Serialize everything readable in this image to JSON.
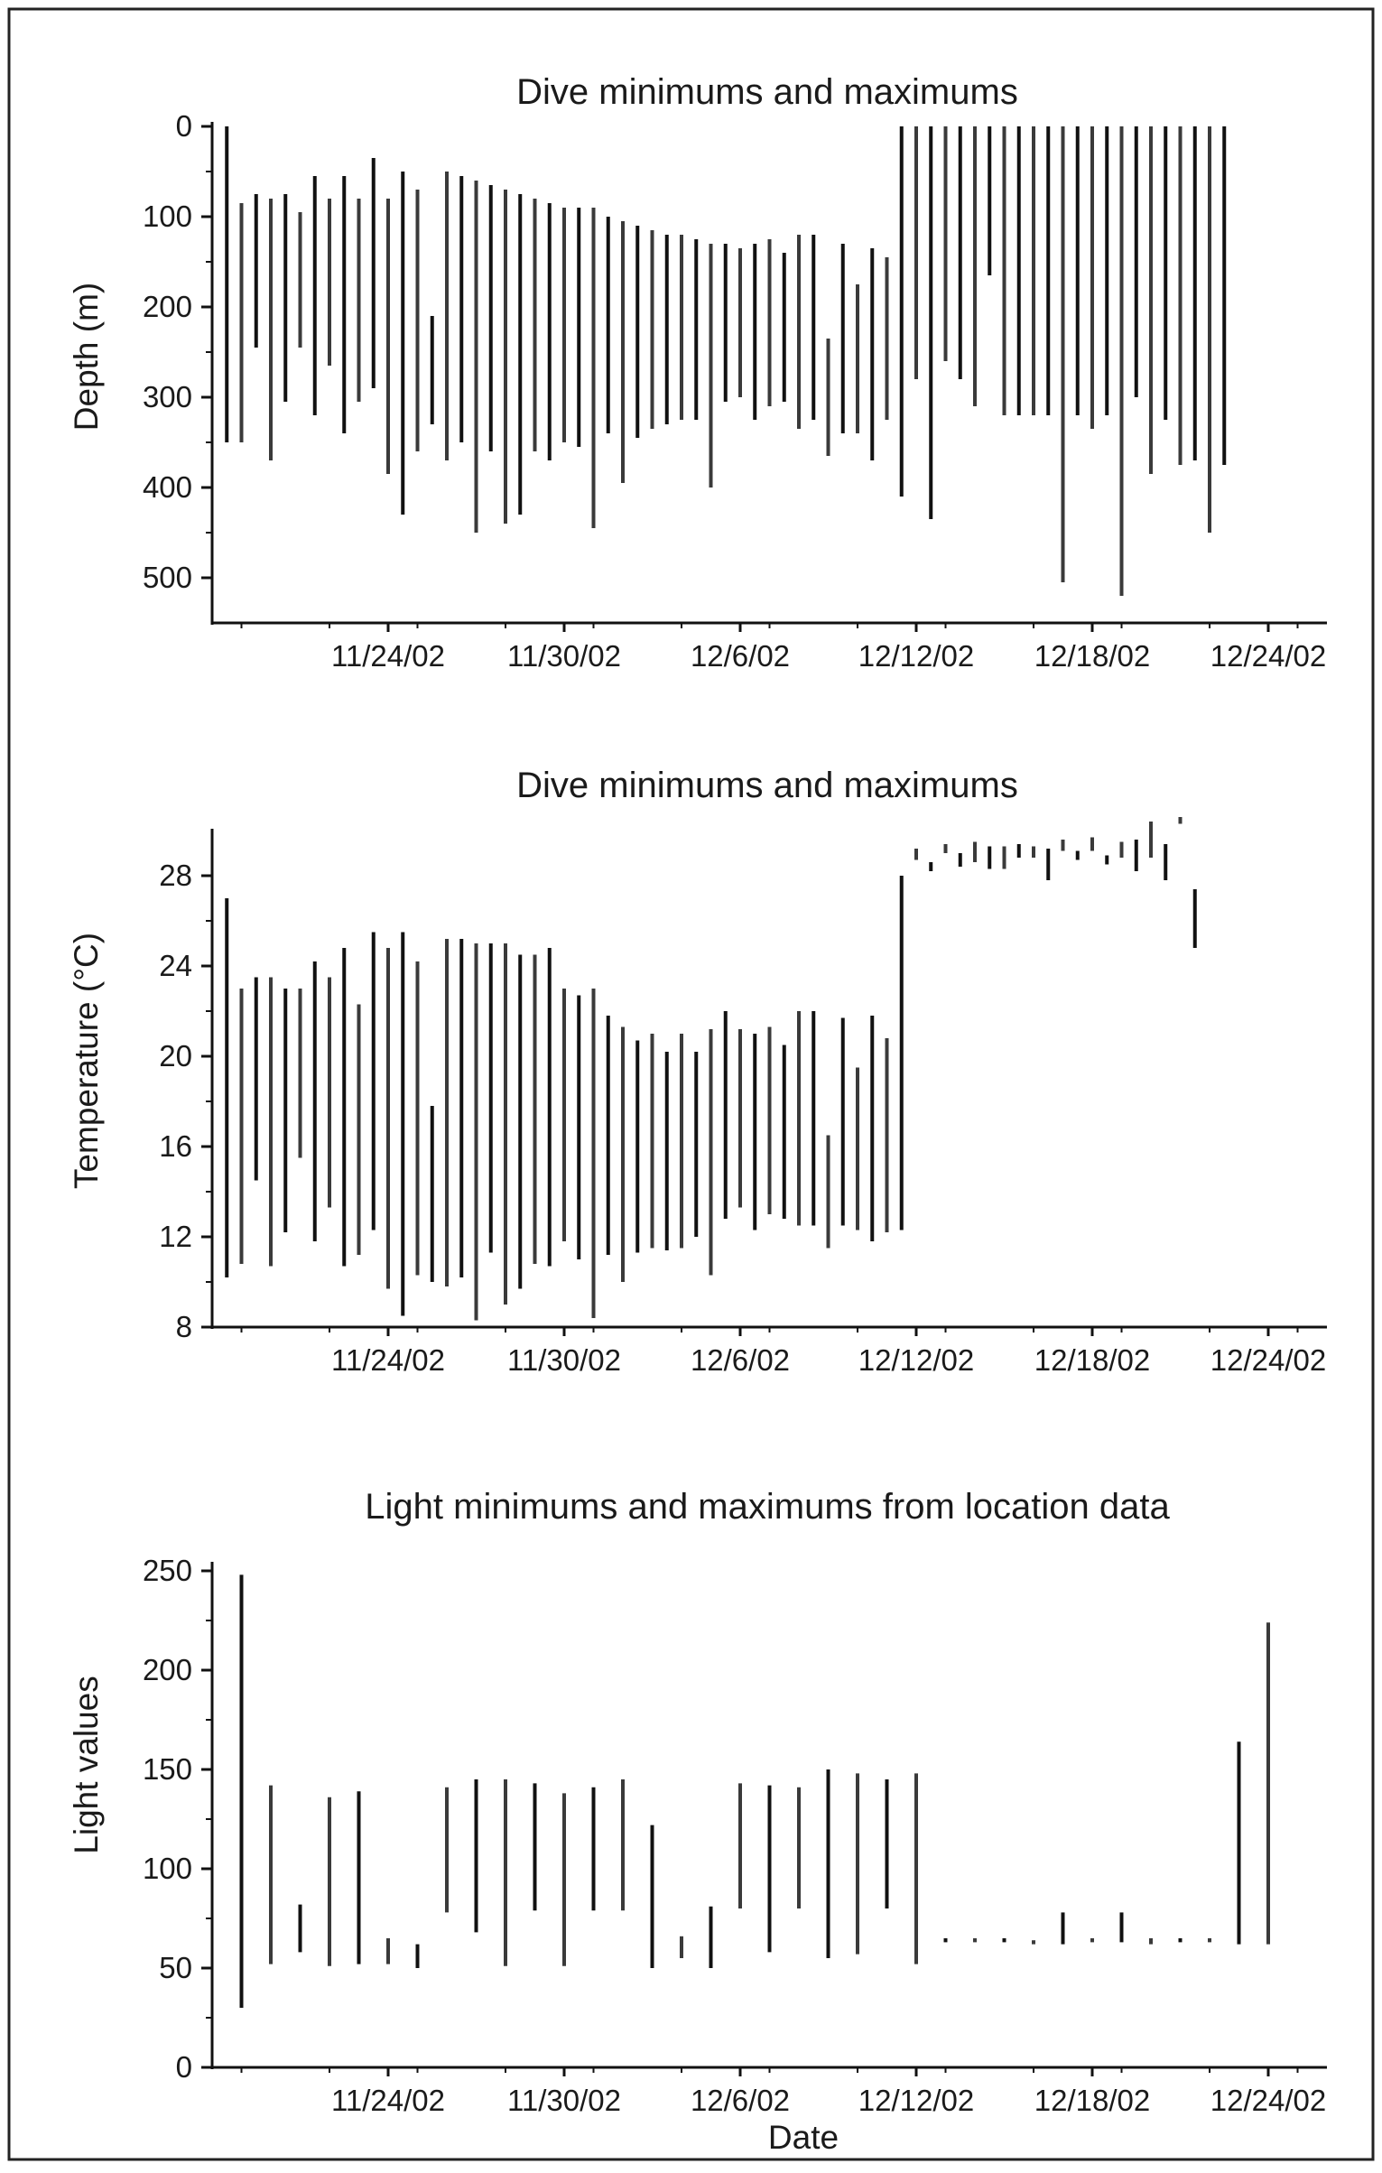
{
  "figure": {
    "xlabel": "Date"
  },
  "chart_data": [
    {
      "type": "range-bar",
      "title": "Dive minimums and maximums",
      "xlabel": "",
      "ylabel": "Depth (m)",
      "x_type": "date",
      "xlim": [
        "2002-11-18",
        "2002-12-26"
      ],
      "ylim": [
        0,
        550
      ],
      "y_inverted": true,
      "y_ticks": [
        0,
        100,
        200,
        300,
        400,
        500
      ],
      "x_ticks": [
        "11/24/02",
        "11/30/02",
        "12/6/02",
        "12/12/02",
        "12/18/02",
        "12/24/02"
      ],
      "x_tick_dates": [
        "2002-11-24",
        "2002-11-30",
        "2002-12-06",
        "2002-12-12",
        "2002-12-18",
        "2002-12-24"
      ],
      "grid": false,
      "series": [
        {
          "points": [
            [
              "2002-11-18T12:00",
              0,
              350
            ],
            [
              "2002-11-19T00:00",
              85,
              350
            ],
            [
              "2002-11-19T12:00",
              75,
              245
            ],
            [
              "2002-11-20T00:00",
              80,
              370
            ],
            [
              "2002-11-20T12:00",
              75,
              305
            ],
            [
              "2002-11-21T00:00",
              95,
              245
            ],
            [
              "2002-11-21T12:00",
              55,
              320
            ],
            [
              "2002-11-22T00:00",
              80,
              265
            ],
            [
              "2002-11-22T12:00",
              55,
              340
            ],
            [
              "2002-11-23T00:00",
              80,
              305
            ],
            [
              "2002-11-23T12:00",
              35,
              290
            ],
            [
              "2002-11-24T00:00",
              80,
              385
            ],
            [
              "2002-11-24T12:00",
              50,
              430
            ],
            [
              "2002-11-25T00:00",
              70,
              360
            ],
            [
              "2002-11-25T12:00",
              210,
              330
            ],
            [
              "2002-11-26T00:00",
              50,
              370
            ],
            [
              "2002-11-26T12:00",
              55,
              350
            ],
            [
              "2002-11-27T00:00",
              60,
              450
            ],
            [
              "2002-11-27T12:00",
              65,
              360
            ],
            [
              "2002-11-28T00:00",
              70,
              440
            ],
            [
              "2002-11-28T12:00",
              75,
              430
            ],
            [
              "2002-11-29T00:00",
              80,
              360
            ],
            [
              "2002-11-29T12:00",
              85,
              370
            ],
            [
              "2002-11-30T00:00",
              90,
              350
            ],
            [
              "2002-11-30T12:00",
              90,
              355
            ],
            [
              "2002-12-01T00:00",
              90,
              445
            ],
            [
              "2002-12-01T12:00",
              100,
              340
            ],
            [
              "2002-12-02T00:00",
              105,
              395
            ],
            [
              "2002-12-02T12:00",
              110,
              345
            ],
            [
              "2002-12-03T00:00",
              115,
              335
            ],
            [
              "2002-12-03T12:00",
              120,
              330
            ],
            [
              "2002-12-04T00:00",
              120,
              325
            ],
            [
              "2002-12-04T12:00",
              125,
              325
            ],
            [
              "2002-12-05T00:00",
              130,
              400
            ],
            [
              "2002-12-05T12:00",
              130,
              305
            ],
            [
              "2002-12-06T00:00",
              135,
              300
            ],
            [
              "2002-12-06T12:00",
              130,
              325
            ],
            [
              "2002-12-07T00:00",
              125,
              310
            ],
            [
              "2002-12-07T12:00",
              140,
              305
            ],
            [
              "2002-12-08T00:00",
              120,
              335
            ],
            [
              "2002-12-08T12:00",
              120,
              325
            ],
            [
              "2002-12-09T00:00",
              235,
              365
            ],
            [
              "2002-12-09T12:00",
              130,
              340
            ],
            [
              "2002-12-10T00:00",
              175,
              340
            ],
            [
              "2002-12-10T12:00",
              135,
              370
            ],
            [
              "2002-12-11T00:00",
              145,
              325
            ],
            [
              "2002-12-11T12:00",
              0,
              410
            ],
            [
              "2002-12-12T00:00",
              0,
              280
            ],
            [
              "2002-12-12T12:00",
              0,
              435
            ],
            [
              "2002-12-13T00:00",
              0,
              260
            ],
            [
              "2002-12-13T12:00",
              0,
              280
            ],
            [
              "2002-12-14T00:00",
              0,
              310
            ],
            [
              "2002-12-14T12:00",
              0,
              165
            ],
            [
              "2002-12-15T00:00",
              0,
              320
            ],
            [
              "2002-12-15T12:00",
              0,
              320
            ],
            [
              "2002-12-16T00:00",
              0,
              320
            ],
            [
              "2002-12-16T12:00",
              0,
              320
            ],
            [
              "2002-12-17T00:00",
              0,
              505
            ],
            [
              "2002-12-17T12:00",
              0,
              320
            ],
            [
              "2002-12-18T00:00",
              0,
              335
            ],
            [
              "2002-12-18T12:00",
              0,
              320
            ],
            [
              "2002-12-19T00:00",
              0,
              520
            ],
            [
              "2002-12-19T12:00",
              0,
              300
            ],
            [
              "2002-12-20T00:00",
              0,
              385
            ],
            [
              "2002-12-20T12:00",
              0,
              325
            ],
            [
              "2002-12-21T00:00",
              0,
              375
            ],
            [
              "2002-12-21T12:00",
              0,
              370
            ],
            [
              "2002-12-22T00:00",
              0,
              450
            ],
            [
              "2002-12-22T12:00",
              0,
              375
            ]
          ]
        }
      ]
    },
    {
      "type": "range-bar",
      "title": "Dive minimums and maximums",
      "xlabel": "",
      "ylabel": "Temperature (°C)",
      "x_type": "date",
      "xlim": [
        "2002-11-18",
        "2002-12-26"
      ],
      "ylim": [
        8,
        30
      ],
      "y_ticks": [
        8,
        12,
        16,
        20,
        24,
        28
      ],
      "x_ticks": [
        "11/24/02",
        "11/30/02",
        "12/6/02",
        "12/12/02",
        "12/18/02",
        "12/24/02"
      ],
      "x_tick_dates": [
        "2002-11-24",
        "2002-11-30",
        "2002-12-06",
        "2002-12-12",
        "2002-12-18",
        "2002-12-24"
      ],
      "grid": false,
      "series": [
        {
          "points": [
            [
              "2002-11-18T12:00",
              10.2,
              27.0
            ],
            [
              "2002-11-19T00:00",
              10.8,
              23.0
            ],
            [
              "2002-11-19T12:00",
              14.5,
              23.5
            ],
            [
              "2002-11-20T00:00",
              10.7,
              23.5
            ],
            [
              "2002-11-20T12:00",
              12.2,
              23.0
            ],
            [
              "2002-11-21T00:00",
              15.5,
              23.0
            ],
            [
              "2002-11-21T12:00",
              11.8,
              24.2
            ],
            [
              "2002-11-22T00:00",
              13.3,
              23.5
            ],
            [
              "2002-11-22T12:00",
              10.7,
              24.8
            ],
            [
              "2002-11-23T00:00",
              11.2,
              22.3
            ],
            [
              "2002-11-23T12:00",
              12.3,
              25.5
            ],
            [
              "2002-11-24T00:00",
              9.7,
              24.8
            ],
            [
              "2002-11-24T12:00",
              8.5,
              25.5
            ],
            [
              "2002-11-25T00:00",
              10.3,
              24.2
            ],
            [
              "2002-11-25T12:00",
              10.0,
              17.8
            ],
            [
              "2002-11-26T00:00",
              9.8,
              25.2
            ],
            [
              "2002-11-26T12:00",
              10.2,
              25.2
            ],
            [
              "2002-11-27T00:00",
              8.3,
              25.0
            ],
            [
              "2002-11-27T12:00",
              11.3,
              25.0
            ],
            [
              "2002-11-28T00:00",
              9.0,
              25.0
            ],
            [
              "2002-11-28T12:00",
              9.7,
              24.5
            ],
            [
              "2002-11-29T00:00",
              10.8,
              24.5
            ],
            [
              "2002-11-29T12:00",
              10.7,
              24.8
            ],
            [
              "2002-11-30T00:00",
              11.8,
              23.0
            ],
            [
              "2002-11-30T12:00",
              11.0,
              22.7
            ],
            [
              "2002-12-01T00:00",
              8.4,
              23.0
            ],
            [
              "2002-12-01T12:00",
              11.2,
              21.8
            ],
            [
              "2002-12-02T00:00",
              10.0,
              21.3
            ],
            [
              "2002-12-02T12:00",
              11.3,
              20.7
            ],
            [
              "2002-12-03T00:00",
              11.5,
              21.0
            ],
            [
              "2002-12-03T12:00",
              11.4,
              20.2
            ],
            [
              "2002-12-04T00:00",
              11.5,
              21.0
            ],
            [
              "2002-12-04T12:00",
              12.0,
              20.2
            ],
            [
              "2002-12-05T00:00",
              10.3,
              21.2
            ],
            [
              "2002-12-05T12:00",
              12.8,
              22.0
            ],
            [
              "2002-12-06T00:00",
              13.3,
              21.2
            ],
            [
              "2002-12-06T12:00",
              12.3,
              21.0
            ],
            [
              "2002-12-07T00:00",
              13.0,
              21.3
            ],
            [
              "2002-12-07T12:00",
              12.8,
              20.5
            ],
            [
              "2002-12-08T00:00",
              12.5,
              22.0
            ],
            [
              "2002-12-08T12:00",
              12.5,
              22.0
            ],
            [
              "2002-12-09T00:00",
              11.5,
              16.5
            ],
            [
              "2002-12-09T12:00",
              12.5,
              21.7
            ],
            [
              "2002-12-10T00:00",
              12.3,
              19.5
            ],
            [
              "2002-12-10T12:00",
              11.8,
              21.8
            ],
            [
              "2002-12-11T00:00",
              12.2,
              20.8
            ],
            [
              "2002-12-11T12:00",
              12.3,
              28.0
            ],
            [
              "2002-12-12T00:00",
              28.7,
              29.2
            ],
            [
              "2002-12-12T12:00",
              28.2,
              28.6
            ],
            [
              "2002-12-13T00:00",
              29.0,
              29.4
            ],
            [
              "2002-12-13T12:00",
              28.4,
              29.0
            ],
            [
              "2002-12-14T00:00",
              28.6,
              29.5
            ],
            [
              "2002-12-14T12:00",
              28.3,
              29.3
            ],
            [
              "2002-12-15T00:00",
              28.3,
              29.3
            ],
            [
              "2002-12-15T12:00",
              28.8,
              29.4
            ],
            [
              "2002-12-16T00:00",
              28.8,
              29.3
            ],
            [
              "2002-12-16T12:00",
              27.8,
              29.2
            ],
            [
              "2002-12-17T00:00",
              29.1,
              29.6
            ],
            [
              "2002-12-17T12:00",
              28.7,
              29.1
            ],
            [
              "2002-12-18T00:00",
              29.1,
              29.7
            ],
            [
              "2002-12-18T12:00",
              28.5,
              28.9
            ],
            [
              "2002-12-19T00:00",
              28.8,
              29.5
            ],
            [
              "2002-12-19T12:00",
              28.2,
              29.6
            ],
            [
              "2002-12-20T00:00",
              28.8,
              30.4
            ],
            [
              "2002-12-20T12:00",
              27.8,
              29.4
            ],
            [
              "2002-12-21T00:00",
              30.3,
              30.6
            ],
            [
              "2002-12-21T12:00",
              24.8,
              27.4
            ]
          ]
        }
      ]
    },
    {
      "type": "range-bar",
      "title": "Light minimums and maximums from location data",
      "xlabel": "Date",
      "ylabel": "Light values",
      "x_type": "date",
      "xlim": [
        "2002-11-18",
        "2002-12-26"
      ],
      "ylim": [
        0,
        250
      ],
      "y_ticks": [
        0,
        50,
        100,
        150,
        200,
        250
      ],
      "x_ticks": [
        "11/24/02",
        "11/30/02",
        "12/6/02",
        "12/12/02",
        "12/18/02",
        "12/24/02"
      ],
      "x_tick_dates": [
        "2002-11-24",
        "2002-11-30",
        "2002-12-06",
        "2002-12-12",
        "2002-12-18",
        "2002-12-24"
      ],
      "grid": false,
      "series": [
        {
          "points": [
            [
              "2002-11-19T00:00",
              30,
              248
            ],
            [
              "2002-11-20T00:00",
              52,
              142
            ],
            [
              "2002-11-21T00:00",
              58,
              82
            ],
            [
              "2002-11-22T00:00",
              51,
              136
            ],
            [
              "2002-11-23T00:00",
              52,
              139
            ],
            [
              "2002-11-24T00:00",
              52,
              65
            ],
            [
              "2002-11-25T00:00",
              50,
              62
            ],
            [
              "2002-11-26T00:00",
              78,
              141
            ],
            [
              "2002-11-27T00:00",
              68,
              145
            ],
            [
              "2002-11-28T00:00",
              51,
              145
            ],
            [
              "2002-11-29T00:00",
              79,
              143
            ],
            [
              "2002-11-30T00:00",
              51,
              138
            ],
            [
              "2002-12-01T00:00",
              79,
              141
            ],
            [
              "2002-12-02T00:00",
              79,
              145
            ],
            [
              "2002-12-03T00:00",
              50,
              122
            ],
            [
              "2002-12-04T00:00",
              55,
              66
            ],
            [
              "2002-12-05T00:00",
              50,
              81
            ],
            [
              "2002-12-06T00:00",
              80,
              143
            ],
            [
              "2002-12-07T00:00",
              58,
              142
            ],
            [
              "2002-12-08T00:00",
              80,
              141
            ],
            [
              "2002-12-09T00:00",
              55,
              150
            ],
            [
              "2002-12-10T00:00",
              57,
              148
            ],
            [
              "2002-12-11T00:00",
              80,
              145
            ],
            [
              "2002-12-12T00:00",
              52,
              148
            ],
            [
              "2002-12-13T00:00",
              63,
              65
            ],
            [
              "2002-12-14T00:00",
              63,
              65
            ],
            [
              "2002-12-15T00:00",
              63,
              65
            ],
            [
              "2002-12-16T00:00",
              62,
              64
            ],
            [
              "2002-12-17T00:00",
              62,
              78
            ],
            [
              "2002-12-18T00:00",
              63,
              65
            ],
            [
              "2002-12-19T00:00",
              63,
              78
            ],
            [
              "2002-12-20T00:00",
              62,
              65
            ],
            [
              "2002-12-21T00:00",
              63,
              65
            ],
            [
              "2002-12-22T00:00",
              63,
              65
            ],
            [
              "2002-12-23T00:00",
              62,
              164
            ],
            [
              "2002-12-24T00:00",
              62,
              224
            ]
          ]
        }
      ]
    }
  ]
}
